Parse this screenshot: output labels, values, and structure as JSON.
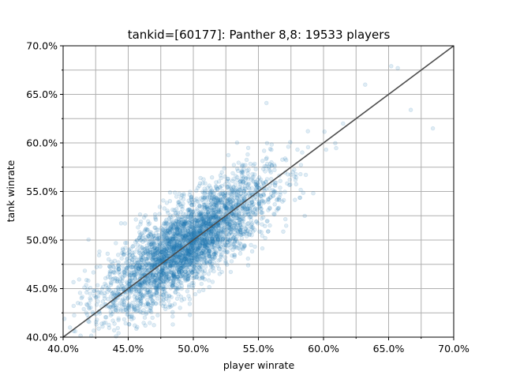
{
  "chart_data": {
    "type": "scatter",
    "title": "tankid=[60177]: Panther 8,8: 19533 players",
    "xlabel": "player winrate",
    "ylabel": "tank winrate",
    "xlim": [
      0.4,
      0.7
    ],
    "ylim": [
      0.4,
      0.7
    ],
    "x_ticks": [
      0.4,
      0.45,
      0.5,
      0.55,
      0.6,
      0.65,
      0.7
    ],
    "x_tick_labels": [
      "40.0%",
      "45.0%",
      "50.0%",
      "55.0%",
      "60.0%",
      "65.0%",
      "70.0%"
    ],
    "y_ticks": [
      0.4,
      0.45,
      0.5,
      0.55,
      0.6,
      0.65,
      0.7
    ],
    "y_tick_labels": [
      "40.0%",
      "45.0%",
      "50.0%",
      "55.0%",
      "60.0%",
      "65.0%",
      "70.0%"
    ],
    "grid": true,
    "point_color": "#1f77b4",
    "point_alpha": 0.14,
    "reference_line": {
      "from": [
        0.4,
        0.4
      ],
      "to": [
        0.7,
        0.7
      ],
      "color": "#4d4d4d"
    },
    "distribution": {
      "count": 19533,
      "mean_x": 0.495,
      "mean_y": 0.495,
      "std_x": 0.032,
      "std_y": 0.035,
      "correlation": 0.78
    },
    "sample_points": [
      [
        0.443,
        0.47
      ],
      [
        0.455,
        0.412
      ],
      [
        0.467,
        0.43
      ],
      [
        0.478,
        0.447
      ],
      [
        0.49,
        0.473
      ],
      [
        0.5,
        0.5
      ],
      [
        0.512,
        0.521
      ],
      [
        0.525,
        0.53
      ],
      [
        0.535,
        0.545
      ],
      [
        0.548,
        0.573
      ],
      [
        0.56,
        0.58
      ],
      [
        0.573,
        0.596
      ],
      [
        0.588,
        0.612
      ],
      [
        0.602,
        0.593
      ],
      [
        0.615,
        0.62
      ],
      [
        0.632,
        0.66
      ],
      [
        0.652,
        0.679
      ],
      [
        0.667,
        0.634
      ],
      [
        0.684,
        0.615
      ],
      [
        0.657,
        0.677
      ]
    ]
  }
}
